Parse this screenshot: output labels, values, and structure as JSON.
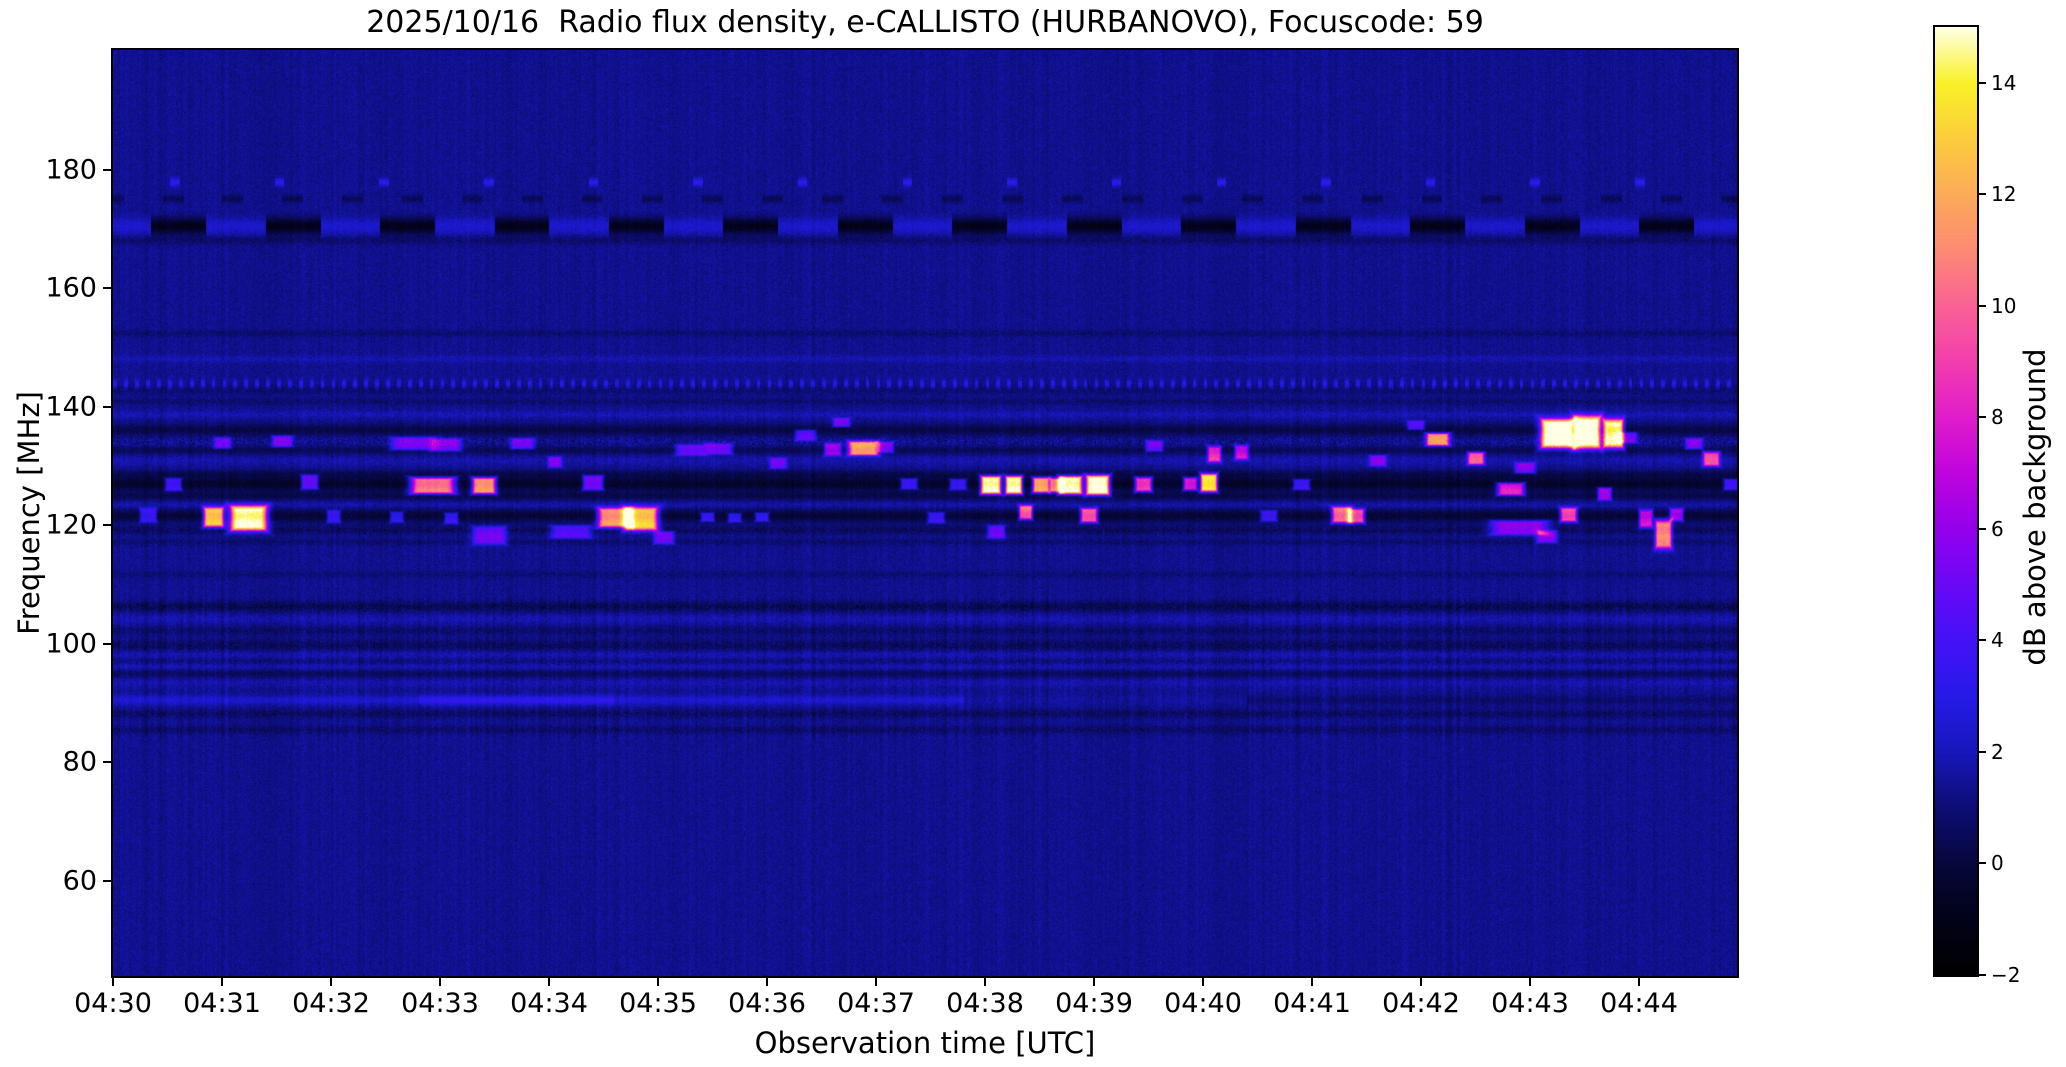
{
  "title": "2025/10/16  Radio flux density, e-CALLISTO (HURBANOVO), Focuscode: 59",
  "axes": {
    "xlabel": "Observation time [UTC]",
    "ylabel": "Frequency [MHz]",
    "x_ticks": [
      "04:30",
      "04:31",
      "04:32",
      "04:33",
      "04:34",
      "04:35",
      "04:36",
      "04:37",
      "04:38",
      "04:39",
      "04:40",
      "04:41",
      "04:42",
      "04:43",
      "04:44"
    ],
    "y_ticks": [
      "180",
      "160",
      "140",
      "120",
      "100",
      "80",
      "60"
    ]
  },
  "colorbar": {
    "label": "dB above background",
    "tick_labels": [
      "14",
      "12",
      "10",
      "8",
      "6",
      "4",
      "2",
      "0",
      "−2"
    ]
  },
  "chart_data": {
    "type": "heatmap",
    "title": "2025/10/16  Radio flux density, e-CALLISTO (HURBANOVO), Focuscode: 59",
    "date": "2025/10/16",
    "instrument": "e-CALLISTO (HURBANOVO)",
    "focuscode": 59,
    "xlabel": "Observation time [UTC]",
    "ylabel": "Frequency [MHz]",
    "x_start": "04:30",
    "x_end": "04:45",
    "x_tick_labels": [
      "04:30",
      "04:31",
      "04:32",
      "04:33",
      "04:34",
      "04:35",
      "04:36",
      "04:37",
      "04:38",
      "04:39",
      "04:40",
      "04:41",
      "04:42",
      "04:43",
      "04:44"
    ],
    "y_ticks_mhz": [
      180,
      160,
      140,
      120,
      100,
      80,
      60
    ],
    "freq_range_mhz": [
      43.95,
      200.25
    ],
    "grid": false,
    "colorbar": {
      "label": "dB above background",
      "range_db": [
        -2,
        15
      ],
      "ticks": [
        14,
        12,
        10,
        8,
        6,
        4,
        2,
        0,
        -2
      ],
      "colormap_stops": [
        [
          -2,
          0,
          0,
          0
        ],
        [
          -1,
          2,
          2,
          24
        ],
        [
          0,
          7,
          7,
          60
        ],
        [
          1,
          13,
          13,
          116
        ],
        [
          2,
          23,
          23,
          188
        ],
        [
          3,
          38,
          26,
          232
        ],
        [
          4,
          68,
          18,
          246
        ],
        [
          5,
          106,
          8,
          246
        ],
        [
          6,
          148,
          0,
          236
        ],
        [
          7,
          190,
          4,
          222
        ],
        [
          8,
          224,
          28,
          204
        ],
        [
          9,
          242,
          62,
          174
        ],
        [
          10,
          249,
          98,
          150
        ],
        [
          11,
          252,
          138,
          116
        ],
        [
          12,
          252,
          171,
          89
        ],
        [
          13,
          252,
          204,
          62
        ],
        [
          14,
          250,
          241,
          40
        ],
        [
          15,
          255,
          255,
          228
        ]
      ]
    },
    "background_level_db": 1.35,
    "noise_std_db": 0.35,
    "noise_bands": [
      {
        "f_lo": 84,
        "f_hi": 108,
        "streak_gain": 1.9
      },
      {
        "f_lo": 115,
        "f_hi": 140,
        "streak_gain": 1.35
      }
    ],
    "spectral_lines": [
      {
        "f": 178.0,
        "sigma": 0.45,
        "amp": 2.0,
        "mode": "dots",
        "period": 0.96,
        "duty": 0.09,
        "phase": 0.44
      },
      {
        "f": 175.2,
        "sigma": 0.45,
        "amp": -0.9,
        "mode": "dots",
        "period": 0.55,
        "duty": 0.35,
        "phase": 0.1
      },
      {
        "f": 170.6,
        "sigma": 0.95,
        "amp": 1.0,
        "amp2": -2.3,
        "mode": "dash",
        "period": 1.05,
        "duty": 0.52,
        "phase": 0.2
      },
      {
        "f": 168.2,
        "sigma": 0.5,
        "amp": -0.55,
        "mode": "speckle"
      },
      {
        "f": 152.5,
        "sigma": 0.4,
        "amp": -0.5,
        "mode": "speckle"
      },
      {
        "f": 148.2,
        "sigma": 0.4,
        "amp": 0.5,
        "mode": "speckle"
      },
      {
        "f": 144.0,
        "sigma": 0.5,
        "amp": 1.7,
        "mode": "dots",
        "period": 0.1,
        "duty": 0.35,
        "phase": 0.0
      },
      {
        "f": 142.9,
        "sigma": 0.5,
        "amp": -0.5,
        "mode": "speckle"
      },
      {
        "f": 141.0,
        "sigma": 0.4,
        "amp": -0.5,
        "mode": "speckle"
      },
      {
        "f": 138.8,
        "sigma": 0.4,
        "amp": 0.55,
        "mode": "speckle"
      },
      {
        "f": 136.2,
        "sigma": 0.7,
        "amp": -1.2,
        "mode": "plain"
      },
      {
        "f": 134.2,
        "sigma": 0.6,
        "amp": 0.55,
        "mode": "speckle2"
      },
      {
        "f": 132.8,
        "sigma": 0.5,
        "amp": -0.9,
        "mode": "plain"
      },
      {
        "f": 131.0,
        "sigma": 0.5,
        "amp": 0.4,
        "mode": "speckle"
      },
      {
        "f": 128.8,
        "sigma": 0.5,
        "amp": -0.8,
        "mode": "plain"
      },
      {
        "f": 127.1,
        "sigma": 0.9,
        "amp": -1.8,
        "mode": "plain"
      },
      {
        "f": 125.0,
        "sigma": 0.5,
        "amp": -1.0,
        "mode": "plain"
      },
      {
        "f": 123.5,
        "sigma": 0.4,
        "amp": 0.4,
        "mode": "speckle"
      },
      {
        "f": 121.7,
        "sigma": 0.8,
        "amp": -1.5,
        "mode": "plain"
      },
      {
        "f": 119.3,
        "sigma": 0.5,
        "amp": -0.8,
        "mode": "speckle"
      },
      {
        "f": 117.3,
        "sigma": 0.4,
        "amp": -0.5,
        "mode": "speckle"
      },
      {
        "f": 111.8,
        "sigma": 0.4,
        "amp": -0.4,
        "mode": "speckle"
      },
      {
        "f": 106.4,
        "sigma": 0.6,
        "amp": -1.0,
        "mode": "speckle"
      },
      {
        "f": 104.3,
        "sigma": 0.5,
        "amp": 0.45,
        "mode": "speckle"
      },
      {
        "f": 102.3,
        "sigma": 0.5,
        "amp": -0.6,
        "mode": "speckle"
      },
      {
        "f": 99.8,
        "sigma": 0.7,
        "amp": -0.8,
        "mode": "speckle"
      },
      {
        "f": 98.3,
        "sigma": 0.5,
        "amp": 0.5,
        "mode": "speckle"
      },
      {
        "f": 96.9,
        "sigma": 0.5,
        "amp": -0.65,
        "mode": "speckle"
      },
      {
        "f": 96.4,
        "sigma": 0.5,
        "amp": 0.8,
        "mode": "plain"
      },
      {
        "f": 95.1,
        "sigma": 0.5,
        "amp": -0.8,
        "mode": "plain"
      },
      {
        "f": 93.5,
        "sigma": 0.5,
        "amp": 0.4,
        "mode": "speckle"
      },
      {
        "f": 90.6,
        "sigma": 0.55,
        "amp": 1.0,
        "mode": "segments",
        "segments": [
          [
            0,
            7.8,
            1.05
          ],
          [
            2.8,
            4.6,
            0.95
          ],
          [
            7.8,
            10.4,
            0.25
          ],
          [
            10.4,
            15.1,
            -0.55
          ]
        ]
      },
      {
        "f": 88.3,
        "sigma": 0.5,
        "amp": -0.7,
        "mode": "speckle"
      },
      {
        "f": 85.6,
        "sigma": 0.5,
        "amp": -0.6,
        "mode": "speckle"
      }
    ],
    "bursts": [
      {
        "t": 0.32,
        "f": 121.8,
        "db": 3.5,
        "w": 0.05,
        "h": 0.8
      },
      {
        "t": 0.92,
        "f": 121.5,
        "db": 12.5,
        "w": 0.06,
        "h": 1.1
      },
      {
        "t": 1.24,
        "f": 121.3,
        "db": 14.5,
        "w": 0.11,
        "h": 1.4
      },
      {
        "t": 0.55,
        "f": 127.0,
        "db": 4.0,
        "w": 0.05,
        "h": 0.7
      },
      {
        "t": 1.0,
        "f": 134.0,
        "db": 4.0,
        "w": 0.05,
        "h": 0.6
      },
      {
        "t": 1.55,
        "f": 134.3,
        "db": 4.5,
        "w": 0.06,
        "h": 0.6
      },
      {
        "t": 1.8,
        "f": 127.4,
        "db": 5.0,
        "w": 0.05,
        "h": 0.8
      },
      {
        "t": 2.02,
        "f": 121.6,
        "db": 3.5,
        "w": 0.04,
        "h": 0.7
      },
      {
        "t": 2.6,
        "f": 121.5,
        "db": 3.2,
        "w": 0.04,
        "h": 0.6
      },
      {
        "t": 2.75,
        "f": 133.9,
        "db": 4.2,
        "w": 0.13,
        "h": 0.7
      },
      {
        "t": 3.05,
        "f": 133.7,
        "db": 4.5,
        "w": 0.09,
        "h": 0.7
      },
      {
        "t": 2.93,
        "f": 126.8,
        "db": 10.5,
        "w": 0.13,
        "h": 0.9
      },
      {
        "t": 3.4,
        "f": 126.8,
        "db": 11.5,
        "w": 0.07,
        "h": 0.9
      },
      {
        "t": 3.1,
        "f": 121.3,
        "db": 3.5,
        "w": 0.04,
        "h": 0.6
      },
      {
        "t": 3.45,
        "f": 118.4,
        "db": 4.2,
        "w": 0.1,
        "h": 1.0
      },
      {
        "t": 3.75,
        "f": 133.9,
        "db": 4.0,
        "w": 0.07,
        "h": 0.6
      },
      {
        "t": 4.05,
        "f": 130.8,
        "db": 4.0,
        "w": 0.04,
        "h": 0.6
      },
      {
        "t": 4.2,
        "f": 119.0,
        "db": 3.6,
        "w": 0.12,
        "h": 0.7
      },
      {
        "t": 4.4,
        "f": 127.3,
        "db": 5.5,
        "w": 0.06,
        "h": 0.8
      },
      {
        "t": 4.6,
        "f": 121.4,
        "db": 11.0,
        "w": 0.1,
        "h": 1.1
      },
      {
        "t": 4.84,
        "f": 121.2,
        "db": 12.5,
        "w": 0.1,
        "h": 1.3
      },
      {
        "t": 5.05,
        "f": 118.0,
        "db": 4.0,
        "w": 0.06,
        "h": 0.7
      },
      {
        "t": 5.3,
        "f": 132.8,
        "db": 4.2,
        "w": 0.09,
        "h": 0.6
      },
      {
        "t": 5.55,
        "f": 133.0,
        "db": 4.5,
        "w": 0.08,
        "h": 0.6
      },
      {
        "t": 5.45,
        "f": 121.5,
        "db": 3.5,
        "w": 0.04,
        "h": 0.5
      },
      {
        "t": 5.7,
        "f": 121.4,
        "db": 3.3,
        "w": 0.04,
        "h": 0.5
      },
      {
        "t": 5.95,
        "f": 121.5,
        "db": 3.5,
        "w": 0.04,
        "h": 0.5
      },
      {
        "t": 6.1,
        "f": 130.6,
        "db": 3.6,
        "w": 0.05,
        "h": 0.6
      },
      {
        "t": 6.35,
        "f": 135.3,
        "db": 3.8,
        "w": 0.06,
        "h": 0.6
      },
      {
        "t": 6.6,
        "f": 132.9,
        "db": 5.5,
        "w": 0.05,
        "h": 0.7
      },
      {
        "t": 6.68,
        "f": 137.5,
        "db": 4.2,
        "w": 0.05,
        "h": 0.5
      },
      {
        "t": 6.88,
        "f": 133.1,
        "db": 11.0,
        "w": 0.09,
        "h": 0.8
      },
      {
        "t": 7.08,
        "f": 133.3,
        "db": 4.5,
        "w": 0.05,
        "h": 0.6
      },
      {
        "t": 7.3,
        "f": 127.1,
        "db": 4.0,
        "w": 0.05,
        "h": 0.6
      },
      {
        "t": 7.55,
        "f": 121.4,
        "db": 3.6,
        "w": 0.05,
        "h": 0.6
      },
      {
        "t": 7.75,
        "f": 127.0,
        "db": 3.8,
        "w": 0.05,
        "h": 0.6
      },
      {
        "t": 8.05,
        "f": 126.9,
        "db": 15.0,
        "w": 0.06,
        "h": 1.0
      },
      {
        "t": 8.26,
        "f": 126.9,
        "db": 15.0,
        "w": 0.05,
        "h": 1.0
      },
      {
        "t": 8.37,
        "f": 122.3,
        "db": 9.5,
        "w": 0.04,
        "h": 0.8
      },
      {
        "t": 8.51,
        "f": 126.9,
        "db": 12.0,
        "w": 0.05,
        "h": 0.85
      },
      {
        "t": 8.65,
        "f": 126.9,
        "db": 10.5,
        "w": 0.04,
        "h": 0.8
      },
      {
        "t": 8.78,
        "f": 126.9,
        "db": 15.0,
        "w": 0.07,
        "h": 1.0
      },
      {
        "t": 9.03,
        "f": 126.9,
        "db": 15.5,
        "w": 0.07,
        "h": 1.1
      },
      {
        "t": 8.95,
        "f": 121.8,
        "db": 9.5,
        "w": 0.05,
        "h": 0.8
      },
      {
        "t": 8.1,
        "f": 119.0,
        "db": 4.2,
        "w": 0.05,
        "h": 0.7
      },
      {
        "t": 9.45,
        "f": 127.0,
        "db": 9.0,
        "w": 0.05,
        "h": 0.8
      },
      {
        "t": 9.55,
        "f": 133.5,
        "db": 4.2,
        "w": 0.05,
        "h": 0.6
      },
      {
        "t": 9.88,
        "f": 127.1,
        "db": 8.0,
        "w": 0.04,
        "h": 0.7
      },
      {
        "t": 10.05,
        "f": 127.3,
        "db": 14.0,
        "w": 0.05,
        "h": 1.0
      },
      {
        "t": 10.1,
        "f": 132.1,
        "db": 7.5,
        "w": 0.04,
        "h": 0.9
      },
      {
        "t": 10.35,
        "f": 132.4,
        "db": 6.5,
        "w": 0.04,
        "h": 0.8
      },
      {
        "t": 10.6,
        "f": 121.7,
        "db": 3.6,
        "w": 0.05,
        "h": 0.6
      },
      {
        "t": 10.9,
        "f": 127.0,
        "db": 4.0,
        "w": 0.05,
        "h": 0.6
      },
      {
        "t": 11.27,
        "f": 121.9,
        "db": 10.0,
        "w": 0.06,
        "h": 0.9
      },
      {
        "t": 11.4,
        "f": 121.7,
        "db": 9.0,
        "w": 0.05,
        "h": 0.8
      },
      {
        "t": 11.6,
        "f": 131.0,
        "db": 4.2,
        "w": 0.05,
        "h": 0.6
      },
      {
        "t": 11.95,
        "f": 137.0,
        "db": 3.8,
        "w": 0.05,
        "h": 0.5
      },
      {
        "t": 12.15,
        "f": 134.6,
        "db": 10.5,
        "w": 0.07,
        "h": 0.7
      },
      {
        "t": 12.5,
        "f": 131.4,
        "db": 8.5,
        "w": 0.05,
        "h": 0.7
      },
      {
        "t": 12.82,
        "f": 126.2,
        "db": 8.0,
        "w": 0.08,
        "h": 0.7
      },
      {
        "t": 12.9,
        "f": 119.7,
        "db": 5.0,
        "w": 0.17,
        "h": 0.8
      },
      {
        "t": 13.15,
        "f": 118.2,
        "db": 4.5,
        "w": 0.06,
        "h": 0.7
      },
      {
        "t": 12.95,
        "f": 129.8,
        "db": 4.5,
        "w": 0.06,
        "h": 0.6
      },
      {
        "t": 13.25,
        "f": 135.6,
        "db": 15.5,
        "w": 0.1,
        "h": 1.6
      },
      {
        "t": 13.52,
        "f": 135.8,
        "db": 15.5,
        "w": 0.08,
        "h": 1.8
      },
      {
        "t": 13.76,
        "f": 135.6,
        "db": 14.0,
        "w": 0.06,
        "h": 1.6
      },
      {
        "t": 13.35,
        "f": 121.9,
        "db": 9.0,
        "w": 0.05,
        "h": 0.8
      },
      {
        "t": 13.68,
        "f": 125.4,
        "db": 6.0,
        "w": 0.04,
        "h": 0.7
      },
      {
        "t": 13.9,
        "f": 134.9,
        "db": 4.2,
        "w": 0.05,
        "h": 0.6
      },
      {
        "t": 14.06,
        "f": 121.2,
        "db": 7.0,
        "w": 0.04,
        "h": 1.0
      },
      {
        "t": 14.22,
        "f": 118.6,
        "db": 10.0,
        "w": 0.05,
        "h": 1.6
      },
      {
        "t": 14.34,
        "f": 121.9,
        "db": 6.0,
        "w": 0.04,
        "h": 0.7
      },
      {
        "t": 14.5,
        "f": 133.9,
        "db": 4.5,
        "w": 0.05,
        "h": 0.6
      },
      {
        "t": 14.66,
        "f": 131.3,
        "db": 8.0,
        "w": 0.05,
        "h": 0.8
      },
      {
        "t": 14.85,
        "f": 127.0,
        "db": 4.2,
        "w": 0.05,
        "h": 0.6
      }
    ]
  },
  "colors": {
    "figure_background": "#ffffff",
    "frame": "#000000",
    "plot_background_navy": "#11118f",
    "text": "#000000"
  }
}
